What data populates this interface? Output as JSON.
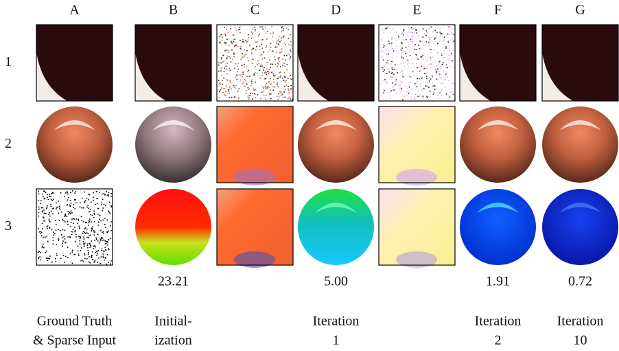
{
  "columns": [
    "A",
    "B",
    "C",
    "D",
    "E",
    "F",
    "G"
  ],
  "rows": [
    "1",
    "2",
    "3"
  ],
  "errors": {
    "B": "23.21",
    "D": "5.00",
    "F": "1.91",
    "G": "0.72"
  },
  "captions": {
    "A": [
      "Ground Truth",
      "& Sparse Input"
    ],
    "B": [
      "Initial-",
      "ization"
    ],
    "D": [
      "Iteration",
      "1"
    ],
    "F": [
      "Iteration",
      "2"
    ],
    "G": [
      "Iteration",
      "10"
    ]
  }
}
